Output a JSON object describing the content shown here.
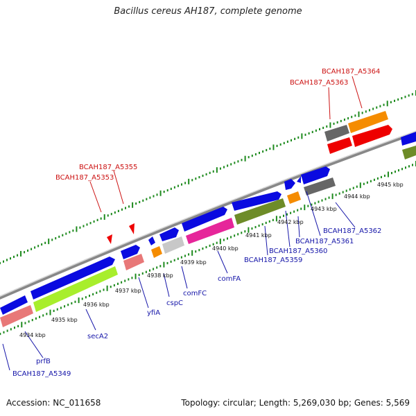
{
  "title": "Bacillus cereus AH187, complete genome",
  "footer": {
    "accession": "Accession: NC_011658",
    "summary": "Topology: circular; Length: 5,269,030 bp; Genes: 5,569"
  },
  "scale_labels": [
    "4934 kbp",
    "4935 kbp",
    "4936 kbp",
    "4937 kbp",
    "4938 kbp",
    "4939 kbp",
    "4940 kbp",
    "4941 kbp",
    "4942 kbp",
    "4943 kbp",
    "4944 kbp",
    "4945 kbp"
  ],
  "top_labels": [
    "BCAH187_A5364",
    "BCAH187_A5363",
    "BCAH187_A5355",
    "BCAH187_A5353"
  ],
  "bottom_labels": [
    "BCAH187_A5349",
    "prfB",
    "secA2",
    "yfiA",
    "cspC",
    "comFC",
    "comFA",
    "BCAH187_A5359",
    "BCAH187_A5360",
    "BCAH187_A5361",
    "BCAH187_A5362"
  ],
  "colors": {
    "forward_cds": "#0a0ae0",
    "gray_gene": "#666666",
    "pink": "#e87878",
    "lime": "#a8ee2c",
    "orange": "#f58c00",
    "light_gray": "#c8c8c8",
    "magenta": "#e6269a",
    "olive": "#6e8c28",
    "red": "#ee0000",
    "tick_green": "#1d8a1d",
    "backbone": "#888888"
  }
}
